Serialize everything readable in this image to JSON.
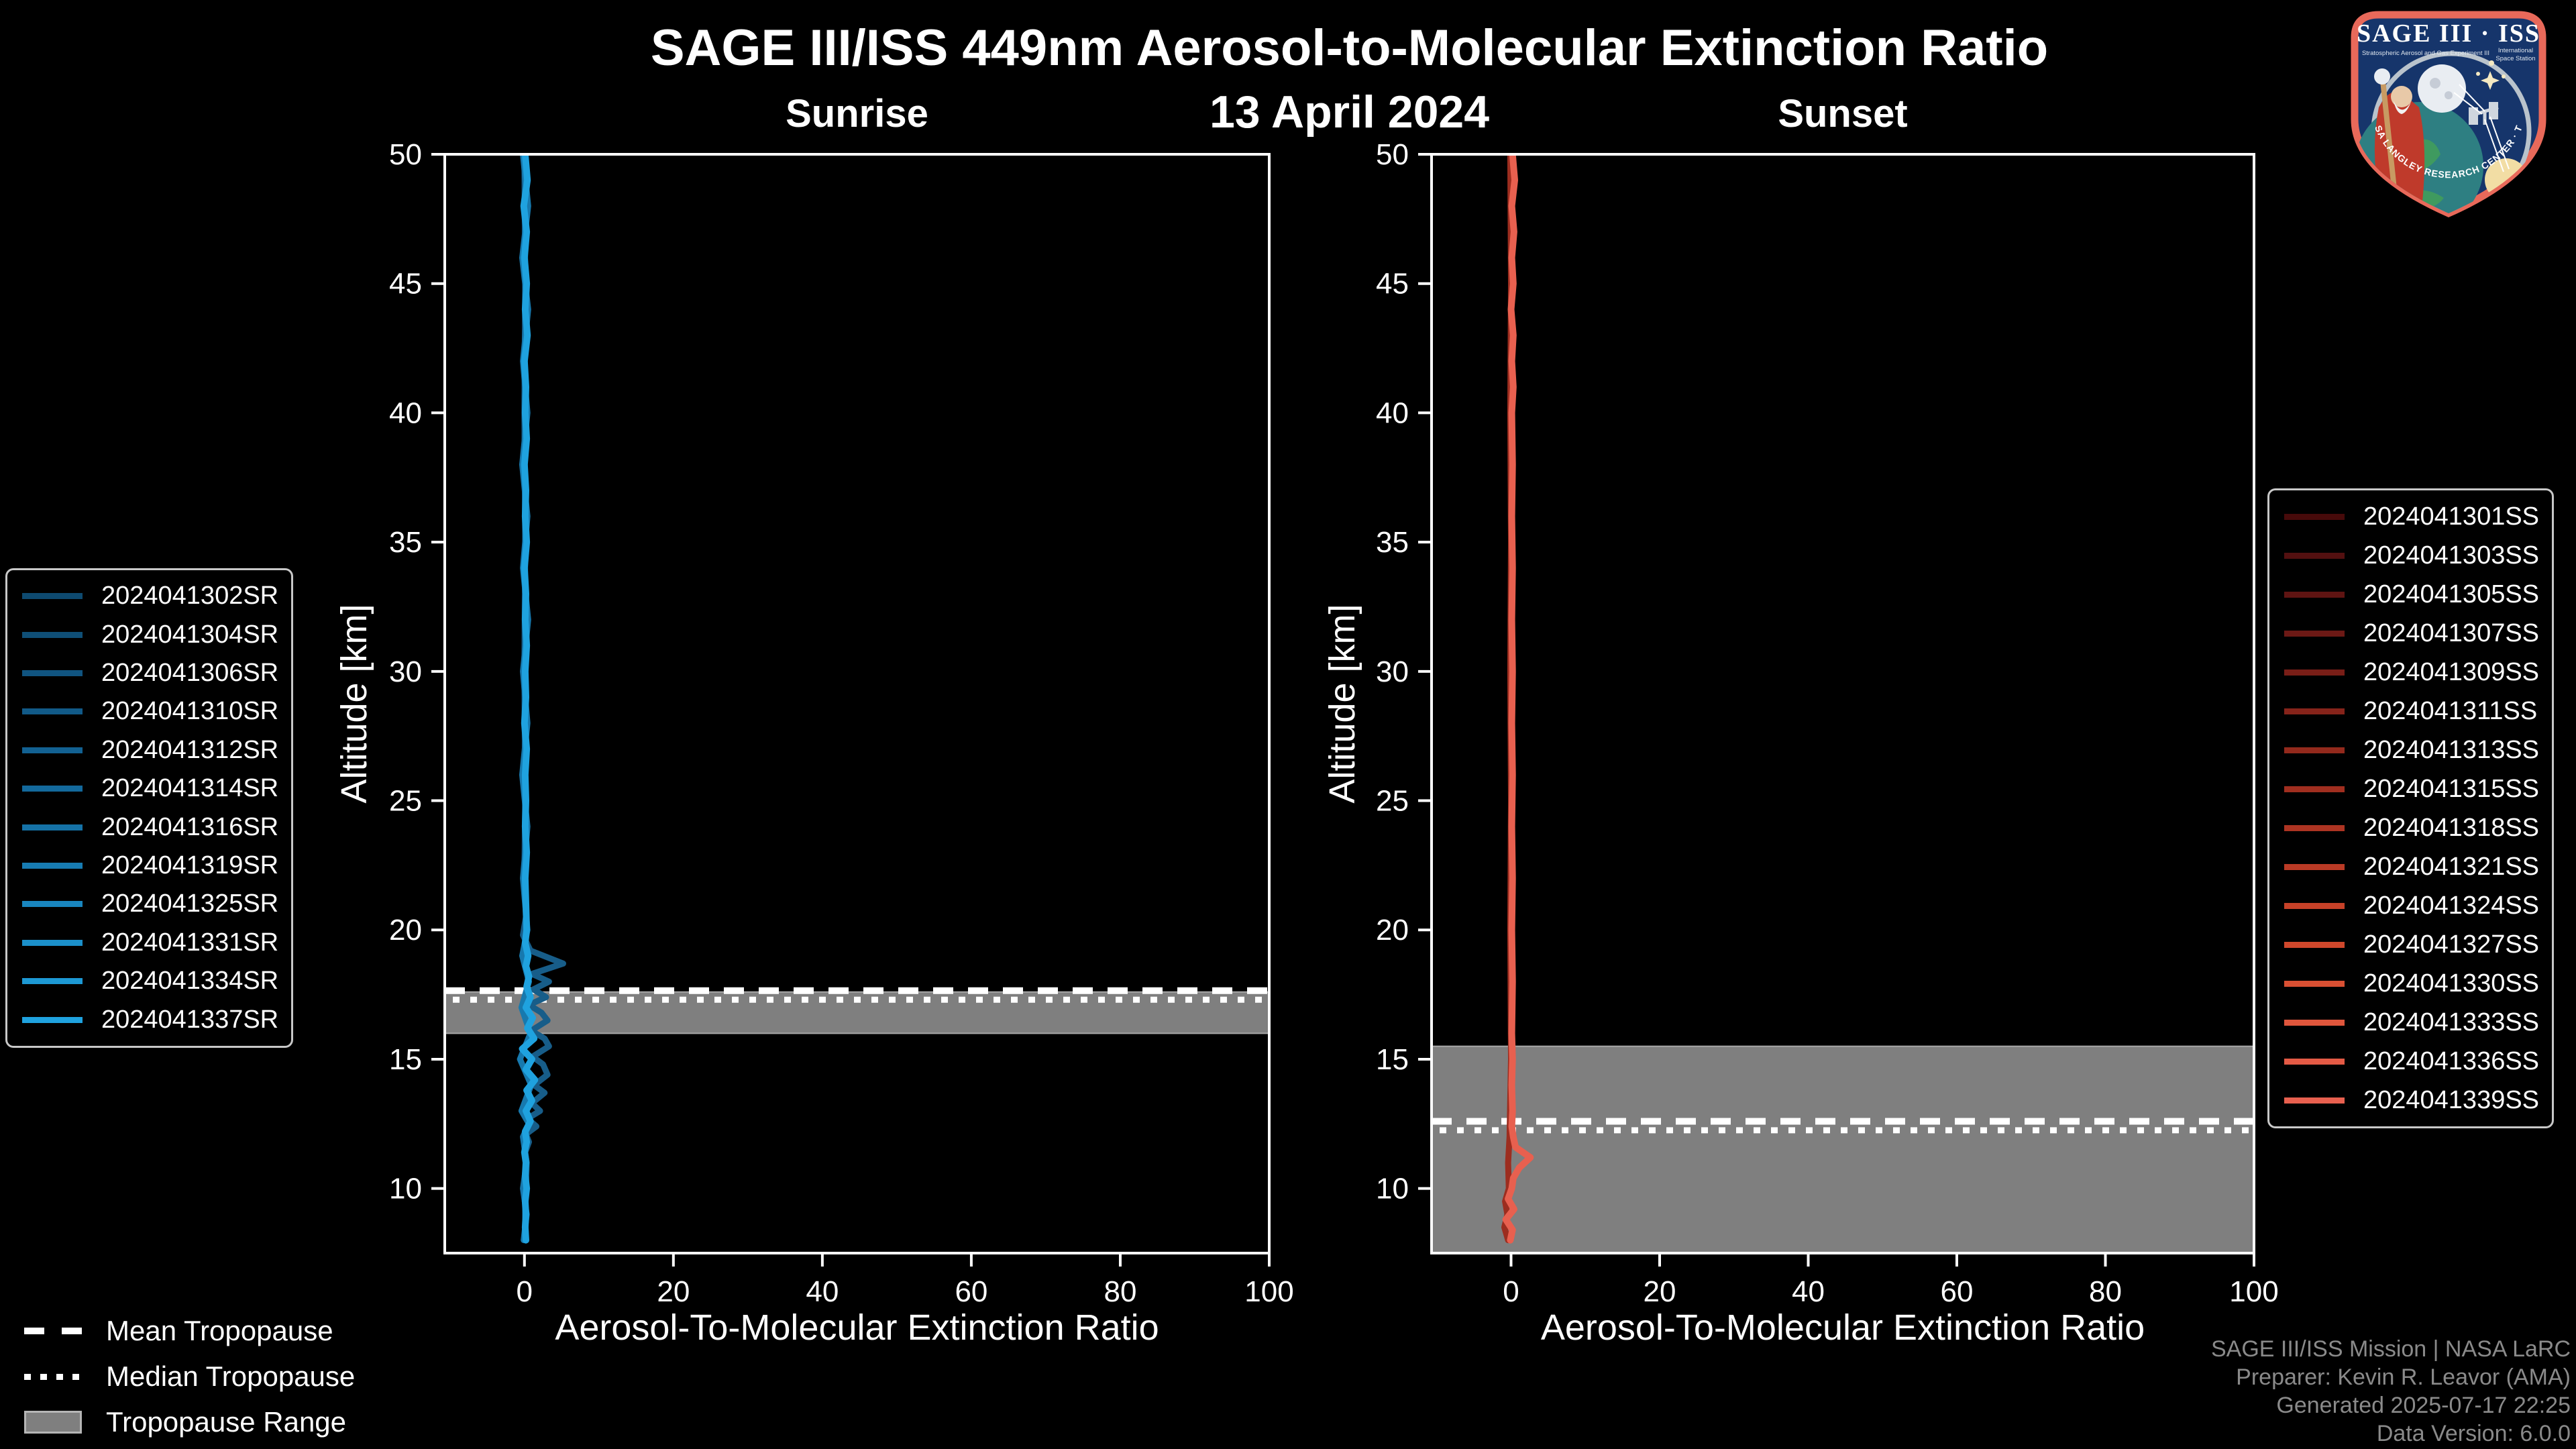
{
  "header": {
    "title": "SAGE III/ISS 449nm Aerosol-to-Molecular Extinction Ratio",
    "date": "13 April 2024"
  },
  "logo": {
    "title_left": "SAGE III",
    "title_sep": "·",
    "title_right": "ISS",
    "subtitle_left": "Stratospheric Aerosol and Gas Experiment III",
    "subtitle_right_1": "International",
    "subtitle_right_2": "Space Station",
    "ring_text": "BALL · NASA LANGLEY RESEARCH CENTER · TAS-I · ESA",
    "border_color": "#e8695a",
    "field_color": "#16356b"
  },
  "tropopause_legend": {
    "items": [
      {
        "label": "Mean Tropopause",
        "marker": "dashed-line"
      },
      {
        "label": "Median Tropopause",
        "marker": "dotted-line"
      },
      {
        "label": "Tropopause Range",
        "marker": "filled-rect"
      }
    ],
    "range_fill": "#7f7f7f",
    "line_color": "#ffffff"
  },
  "credits": {
    "line1": "SAGE III/ISS Mission | NASA LaRC",
    "line2": "Preparer: Kevin R. Leavor (AMA)",
    "line3": "Generated 2025-07-17 22:25",
    "line4": "Data Version: 6.0.0"
  },
  "chart_data": [
    {
      "type": "line",
      "panel_title": "Sunrise",
      "xlabel": "Aerosol-To-Molecular Extinction Ratio",
      "ylabel": "Altitude [km]",
      "xlim": [
        -10.7,
        100
      ],
      "ylim": [
        7.5,
        50
      ],
      "xticks": [
        0,
        20,
        40,
        60,
        80,
        100
      ],
      "yticks": [
        10,
        15,
        20,
        25,
        30,
        35,
        40,
        45,
        50
      ],
      "grid": false,
      "legend_position": "outside-left",
      "legend_entries": [
        {
          "label": "2024041302SR",
          "color": "#0e4a70"
        },
        {
          "label": "2024041304SR",
          "color": "#0f4f77"
        },
        {
          "label": "2024041306SR",
          "color": "#105480"
        },
        {
          "label": "2024041310SR",
          "color": "#115a88"
        },
        {
          "label": "2024041312SR",
          "color": "#126192"
        },
        {
          "label": "2024041314SR",
          "color": "#13699c"
        },
        {
          "label": "2024041316SR",
          "color": "#1572a7"
        },
        {
          "label": "2024041319SR",
          "color": "#177cb3"
        },
        {
          "label": "2024041325SR",
          "color": "#1986bf"
        },
        {
          "label": "2024041331SR",
          "color": "#1b90ca"
        },
        {
          "label": "2024041334SR",
          "color": "#1d99d4"
        },
        {
          "label": "2024041337SR",
          "color": "#1fa2df"
        }
      ],
      "tropopause": {
        "mean_km": 17.65,
        "median_km": 17.3,
        "range_km": [
          16.0,
          17.6
        ]
      },
      "series": [
        {
          "name": "2024041304SR",
          "color": "#175d89",
          "width": 9,
          "points": [
            [
              50,
              0.0
            ],
            [
              45,
              0.1
            ],
            [
              40,
              0.0
            ],
            [
              35,
              0.1
            ],
            [
              30,
              0.0
            ],
            [
              25,
              0.1
            ],
            [
              22,
              0.0
            ],
            [
              20.5,
              0.2
            ],
            [
              19.8,
              -0.2
            ],
            [
              19.2,
              0.8
            ],
            [
              18.7,
              5.2
            ],
            [
              18.3,
              1.0
            ],
            [
              18.0,
              3.3
            ],
            [
              17.7,
              1.2
            ],
            [
              17.4,
              2.9
            ],
            [
              17.1,
              0.6
            ],
            [
              16.8,
              2.3
            ],
            [
              16.5,
              3.1
            ],
            [
              16.1,
              0.9
            ],
            [
              15.8,
              2.7
            ],
            [
              15.5,
              3.3
            ],
            [
              15.1,
              1.1
            ],
            [
              14.8,
              2.5
            ],
            [
              14.4,
              3.1
            ],
            [
              14.0,
              1.3
            ],
            [
              13.7,
              2.7
            ],
            [
              13.3,
              1.0
            ],
            [
              13.0,
              2.1
            ],
            [
              12.7,
              0.4
            ],
            [
              12.4,
              1.6
            ],
            [
              12.1,
              0.2
            ],
            [
              11.8,
              0.6
            ],
            [
              11.4,
              0.1
            ],
            [
              11.0,
              0.3
            ],
            [
              10.0,
              0.2
            ],
            [
              9.0,
              0.1
            ],
            [
              8.0,
              0.2
            ]
          ]
        },
        {
          "name": "2024041316SR",
          "color": "#1779ae",
          "width": 9,
          "points": [
            [
              50,
              -0.2
            ],
            [
              48,
              0.5
            ],
            [
              46,
              -0.3
            ],
            [
              44,
              0.5
            ],
            [
              42,
              -0.2
            ],
            [
              40,
              0.4
            ],
            [
              38,
              -0.3
            ],
            [
              36,
              0.4
            ],
            [
              34,
              -0.2
            ],
            [
              32,
              0.5
            ],
            [
              30,
              -0.2
            ],
            [
              28,
              0.4
            ],
            [
              26,
              -0.3
            ],
            [
              24,
              0.4
            ],
            [
              22,
              -0.2
            ],
            [
              20,
              0.4
            ],
            [
              19,
              -0.3
            ],
            [
              18,
              0.6
            ],
            [
              17,
              -0.4
            ],
            [
              16,
              0.8
            ],
            [
              15,
              -0.6
            ],
            [
              14,
              0.9
            ],
            [
              13,
              -0.4
            ],
            [
              12.5,
              0.6
            ],
            [
              12,
              -0.2
            ],
            [
              11,
              0.3
            ],
            [
              10,
              -0.2
            ],
            [
              9,
              0.3
            ],
            [
              8,
              -0.1
            ]
          ]
        },
        {
          "name": "2024041337SR",
          "color": "#1fa2df",
          "width": 10,
          "points": [
            [
              50,
              0.1
            ],
            [
              49,
              0.4
            ],
            [
              48,
              -0.1
            ],
            [
              47,
              0.3
            ],
            [
              46,
              0.0
            ],
            [
              45,
              0.3
            ],
            [
              44,
              0.1
            ],
            [
              43,
              0.4
            ],
            [
              42,
              0.0
            ],
            [
              41,
              0.2
            ],
            [
              40,
              0.1
            ],
            [
              39,
              0.3
            ],
            [
              38,
              0.0
            ],
            [
              37,
              0.2
            ],
            [
              36,
              0.1
            ],
            [
              35,
              0.3
            ],
            [
              34,
              0.0
            ],
            [
              33,
              0.2
            ],
            [
              32,
              0.1
            ],
            [
              31,
              0.3
            ],
            [
              30,
              0.1
            ],
            [
              29,
              0.2
            ],
            [
              28,
              0.0
            ],
            [
              27,
              0.3
            ],
            [
              26,
              0.1
            ],
            [
              25,
              0.2
            ],
            [
              24,
              0.1
            ],
            [
              23,
              0.3
            ],
            [
              22,
              0.1
            ],
            [
              21,
              0.2
            ],
            [
              20,
              0.3
            ],
            [
              19.5,
              0.1
            ],
            [
              19,
              0.5
            ],
            [
              18.6,
              0.2
            ],
            [
              18.2,
              0.6
            ],
            [
              17.8,
              0.3
            ],
            [
              17.4,
              0.8
            ],
            [
              17.0,
              0.2
            ],
            [
              16.6,
              1.1
            ],
            [
              16.2,
              0.4
            ],
            [
              15.8,
              1.3
            ],
            [
              15.4,
              -0.3
            ],
            [
              15.0,
              1.0
            ],
            [
              14.6,
              0.2
            ],
            [
              14.2,
              1.4
            ],
            [
              13.8,
              0.3
            ],
            [
              13.4,
              1.0
            ],
            [
              13.0,
              0.2
            ],
            [
              12.6,
              0.8
            ],
            [
              12.2,
              0.1
            ],
            [
              11.8,
              0.3
            ],
            [
              11.4,
              0.0
            ],
            [
              11.0,
              0.2
            ],
            [
              10.5,
              0.1
            ],
            [
              10.0,
              0.3
            ],
            [
              9.5,
              0.1
            ],
            [
              9.0,
              0.2
            ],
            [
              8.5,
              0.1
            ],
            [
              8.0,
              0.2
            ]
          ]
        }
      ]
    },
    {
      "type": "line",
      "panel_title": "Sunset",
      "xlabel": "Aerosol-To-Molecular Extinction Ratio",
      "ylabel": "Altitude [km]",
      "xlim": [
        -10.7,
        100
      ],
      "ylim": [
        7.5,
        50
      ],
      "xticks": [
        0,
        20,
        40,
        60,
        80,
        100
      ],
      "yticks": [
        10,
        15,
        20,
        25,
        30,
        35,
        40,
        45,
        50
      ],
      "grid": false,
      "legend_position": "outside-right",
      "legend_entries": [
        {
          "label": "2024041301SS",
          "color": "#470a0a"
        },
        {
          "label": "2024041303SS",
          "color": "#531010"
        },
        {
          "label": "2024041305SS",
          "color": "#5f1412"
        },
        {
          "label": "2024041307SS",
          "color": "#6c1915"
        },
        {
          "label": "2024041309SS",
          "color": "#791e17"
        },
        {
          "label": "2024041311SS",
          "color": "#86231a"
        },
        {
          "label": "2024041313SS",
          "color": "#93291c"
        },
        {
          "label": "2024041315SS",
          "color": "#a02e1f"
        },
        {
          "label": "2024041318SS",
          "color": "#ad3422"
        },
        {
          "label": "2024041321SS",
          "color": "#ba3a25"
        },
        {
          "label": "2024041324SS",
          "color": "#c64128"
        },
        {
          "label": "2024041327SS",
          "color": "#d0482c"
        },
        {
          "label": "2024041330SS",
          "color": "#d95033"
        },
        {
          "label": "2024041333SS",
          "color": "#df563c"
        },
        {
          "label": "2024041336SS",
          "color": "#e45a45"
        },
        {
          "label": "2024041339SS",
          "color": "#e8604f"
        }
      ],
      "tropopause": {
        "mean_km": 12.6,
        "median_km": 12.25,
        "range_km": [
          7.5,
          15.5
        ]
      },
      "series": [
        {
          "name": "2024041309SS",
          "color": "#9c2d1f",
          "width": 9,
          "points": [
            [
              50,
              -0.1
            ],
            [
              45,
              0.0
            ],
            [
              40,
              -0.1
            ],
            [
              35,
              0.0
            ],
            [
              30,
              -0.1
            ],
            [
              25,
              0.0
            ],
            [
              20,
              -0.1
            ],
            [
              15,
              0.0
            ],
            [
              12,
              -0.2
            ],
            [
              11,
              -0.4
            ],
            [
              10,
              -0.3
            ],
            [
              9.5,
              -0.8
            ],
            [
              9.0,
              -0.5
            ],
            [
              8.5,
              -0.9
            ],
            [
              8.0,
              -0.4
            ]
          ]
        },
        {
          "name": "2024041339SS",
          "color": "#e8604f",
          "width": 10,
          "points": [
            [
              50,
              0.2
            ],
            [
              49,
              0.5
            ],
            [
              48,
              0.1
            ],
            [
              47,
              0.4
            ],
            [
              46,
              0.1
            ],
            [
              45,
              0.3
            ],
            [
              44,
              0.0
            ],
            [
              43,
              0.3
            ],
            [
              42,
              0.1
            ],
            [
              41,
              0.3
            ],
            [
              40,
              0.1
            ],
            [
              38,
              0.2
            ],
            [
              36,
              0.1
            ],
            [
              34,
              0.2
            ],
            [
              32,
              0.1
            ],
            [
              30,
              0.2
            ],
            [
              28,
              0.1
            ],
            [
              26,
              0.2
            ],
            [
              24,
              0.1
            ],
            [
              22,
              0.2
            ],
            [
              20,
              0.1
            ],
            [
              18,
              0.2
            ],
            [
              16,
              0.1
            ],
            [
              15,
              0.2
            ],
            [
              14,
              0.1
            ],
            [
              13,
              0.2
            ],
            [
              12.4,
              0.1
            ],
            [
              12.0,
              0.3
            ],
            [
              11.6,
              0.6
            ],
            [
              11.2,
              2.6
            ],
            [
              10.8,
              1.1
            ],
            [
              10.4,
              0.3
            ],
            [
              10.0,
              0.1
            ],
            [
              9.6,
              -0.4
            ],
            [
              9.2,
              0.4
            ],
            [
              8.8,
              -0.7
            ],
            [
              8.4,
              0.2
            ],
            [
              8.0,
              -0.1
            ]
          ]
        }
      ]
    }
  ]
}
